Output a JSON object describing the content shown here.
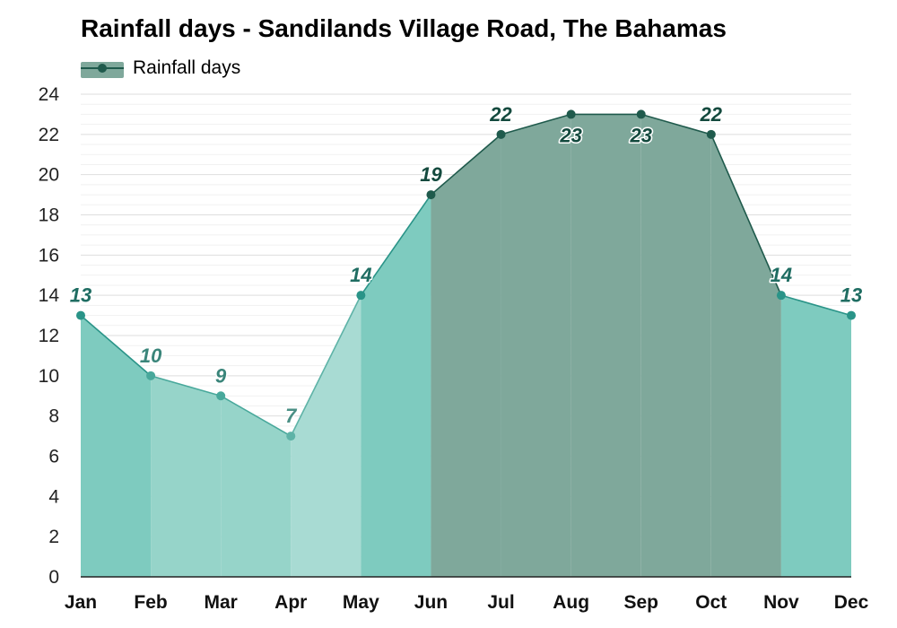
{
  "chart_data": {
    "type": "area",
    "title": "Rainfall days - Sandilands Village Road, The Bahamas",
    "legend": {
      "label": "Rainfall days",
      "position": "top-left"
    },
    "xlabel": "",
    "ylabel": "",
    "ylim": [
      0,
      24
    ],
    "yticks": [
      "0",
      "2",
      "4",
      "6",
      "8",
      "10",
      "12",
      "14",
      "16",
      "18",
      "20",
      "22",
      "24"
    ],
    "grid": true,
    "categories": [
      "Jan",
      "Feb",
      "Mar",
      "Apr",
      "May",
      "Jun",
      "Jul",
      "Aug",
      "Sep",
      "Oct",
      "Nov",
      "Dec"
    ],
    "series": [
      {
        "name": "Rainfall days",
        "values": [
          13,
          10,
          9,
          7,
          14,
          19,
          22,
          23,
          23,
          22,
          14,
          13
        ]
      }
    ],
    "data_labels": [
      "13",
      "10",
      "9",
      "7",
      "14",
      "19",
      "22",
      "23",
      "23",
      "22",
      "14",
      "13"
    ]
  },
  "colors": {
    "legend_fill": "#7fa89b",
    "legend_line": "#1f5a4c",
    "grid": "#e6e6e6",
    "axis": "#222222"
  }
}
